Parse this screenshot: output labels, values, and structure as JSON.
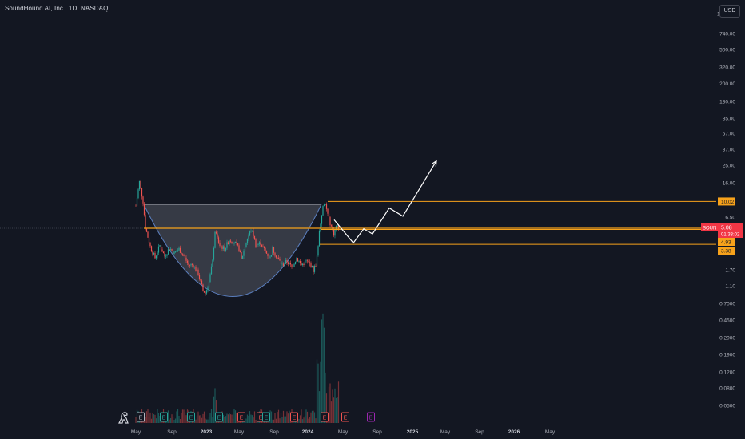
{
  "header": {
    "title": "SoundHound AI, Inc., 1D, NASDAQ",
    "currency": "USD"
  },
  "colors": {
    "background": "#131722",
    "up": "#26a69a",
    "down": "#ef5350",
    "level_line": "#f7a21b",
    "last_price_tag": "#f23645",
    "projection": "#ffffff",
    "cup_fill": "#787b86",
    "cup_outline": "#5b7fbf"
  },
  "chart_data": {
    "type": "candlestick",
    "symbol": "SOUN",
    "interval": "1D",
    "scale": "log",
    "y_tick_labels": [
      "1100.00",
      "740.00",
      "500.00",
      "320.00",
      "200.00",
      "130.00",
      "85.00",
      "57.00",
      "37.00",
      "25.00",
      "16.00",
      "10.02",
      "6.50",
      "4.93",
      "3.38",
      "1.70",
      "1.10",
      "0.7000",
      "0.4500",
      "0.2900",
      "0.1900",
      "0.1200",
      "0.0800",
      "0.0500"
    ],
    "x_tick_labels": [
      "May",
      "Sep",
      "2023",
      "May",
      "Sep",
      "2024",
      "May",
      "Sep",
      "2025",
      "May",
      "Sep",
      "2026",
      "May"
    ],
    "x_tick_bold": [
      "2023",
      "2024",
      "2025",
      "2026"
    ],
    "price_levels": [
      {
        "label": "10.02",
        "value": 10.02
      },
      {
        "label": "4.93",
        "value": 4.93
      },
      {
        "label": "3.38",
        "value": 3.38
      }
    ],
    "last_price": {
      "symbol": "SOUN",
      "price": "5.08",
      "countdown": "01:33:02",
      "value": 5.08
    },
    "price_anchors": [
      [
        0,
        9.0
      ],
      [
        3,
        16.5
      ],
      [
        6,
        10.0
      ],
      [
        8,
        5.2
      ],
      [
        12,
        3.2
      ],
      [
        16,
        2.4
      ],
      [
        20,
        3.3
      ],
      [
        24,
        2.5
      ],
      [
        28,
        3.1
      ],
      [
        32,
        2.7
      ],
      [
        36,
        3.0
      ],
      [
        40,
        2.5
      ],
      [
        44,
        2.0
      ],
      [
        48,
        2.0
      ],
      [
        52,
        1.6
      ],
      [
        56,
        1.05
      ],
      [
        58,
        0.98
      ],
      [
        61,
        1.3
      ],
      [
        64,
        2.2
      ],
      [
        66,
        4.7
      ],
      [
        70,
        3.3
      ],
      [
        74,
        3.0
      ],
      [
        78,
        3.8
      ],
      [
        82,
        3.6
      ],
      [
        86,
        3.0
      ],
      [
        88,
        2.3
      ],
      [
        92,
        3.6
      ],
      [
        96,
        4.9
      ],
      [
        98,
        4.3
      ],
      [
        100,
        3.3
      ],
      [
        104,
        3.5
      ],
      [
        108,
        2.8
      ],
      [
        112,
        2.4
      ],
      [
        114,
        3.0
      ],
      [
        118,
        2.4
      ],
      [
        122,
        2.0
      ],
      [
        126,
        2.2
      ],
      [
        130,
        1.9
      ],
      [
        134,
        2.4
      ],
      [
        138,
        2.0
      ],
      [
        142,
        2.2
      ],
      [
        146,
        2.0
      ],
      [
        148,
        1.75
      ],
      [
        150,
        2.05
      ],
      [
        151,
        2.45
      ],
      [
        153,
        4.7
      ],
      [
        155,
        7.5
      ],
      [
        157,
        9.8
      ],
      [
        159,
        8.0
      ],
      [
        161,
        6.4
      ],
      [
        163,
        5.3
      ],
      [
        165,
        4.4
      ],
      [
        167,
        5.4
      ],
      [
        169,
        5.08
      ]
    ],
    "cup_pattern": {
      "rim_price": 9.3,
      "left_x": "2022-05",
      "right_x": "2024-03",
      "bottom_price": 0.9
    },
    "projection_path": [
      [
        0,
        6.3
      ],
      [
        1,
        3.5
      ],
      [
        2,
        5.0
      ],
      [
        3,
        4.4
      ],
      [
        4,
        8.5
      ],
      [
        5,
        6.9
      ],
      [
        6,
        28.0
      ]
    ],
    "events": [
      {
        "letter": "E",
        "kind": "earnings-past"
      },
      {
        "letter": "E",
        "kind": "earnings-up"
      },
      {
        "letter": "E",
        "kind": "earnings-up"
      },
      {
        "letter": "E",
        "kind": "earnings-up"
      },
      {
        "letter": "E",
        "kind": "earnings-down"
      },
      {
        "letter": "E",
        "kind": "earnings-down"
      },
      {
        "letter": "E",
        "kind": "earnings-up"
      },
      {
        "letter": "E",
        "kind": "earnings-down"
      },
      {
        "letter": "E",
        "kind": "earnings-down"
      },
      {
        "letter": "E",
        "kind": "earnings-down"
      },
      {
        "letter": "E",
        "kind": "earnings-upcoming"
      }
    ]
  }
}
